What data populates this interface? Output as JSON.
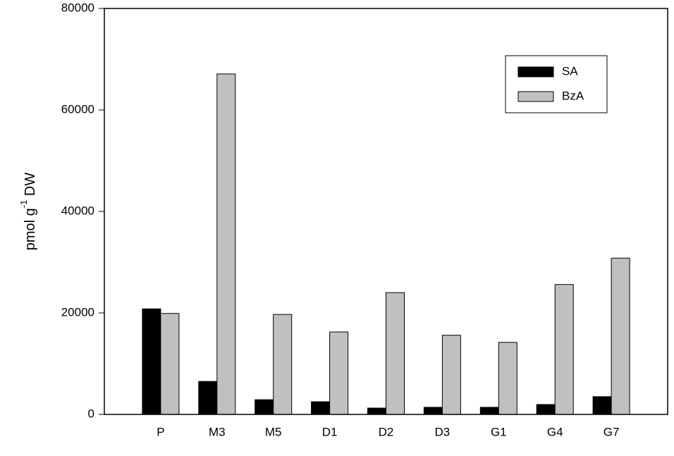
{
  "chart_data": {
    "type": "bar",
    "y_label": [
      "pmol g",
      "-1",
      " DW"
    ],
    "categories": [
      "P",
      "M3",
      "M5",
      "D1",
      "D2",
      "D3",
      "G1",
      "G4",
      "G7"
    ],
    "series": [
      {
        "name": "SA",
        "color": "#000000",
        "values": [
          20800,
          6500,
          2900,
          2500,
          1250,
          1400,
          1400,
          1950,
          3500
        ]
      },
      {
        "name": "BzA",
        "color": "#c0c0c0",
        "values": [
          19900,
          67100,
          19700,
          16250,
          24000,
          15600,
          14200,
          25600,
          30800
        ]
      }
    ],
    "ylim": [
      0,
      80000
    ],
    "yticks": [
      0,
      20000,
      40000,
      60000,
      80000
    ],
    "legend": "upper right"
  }
}
